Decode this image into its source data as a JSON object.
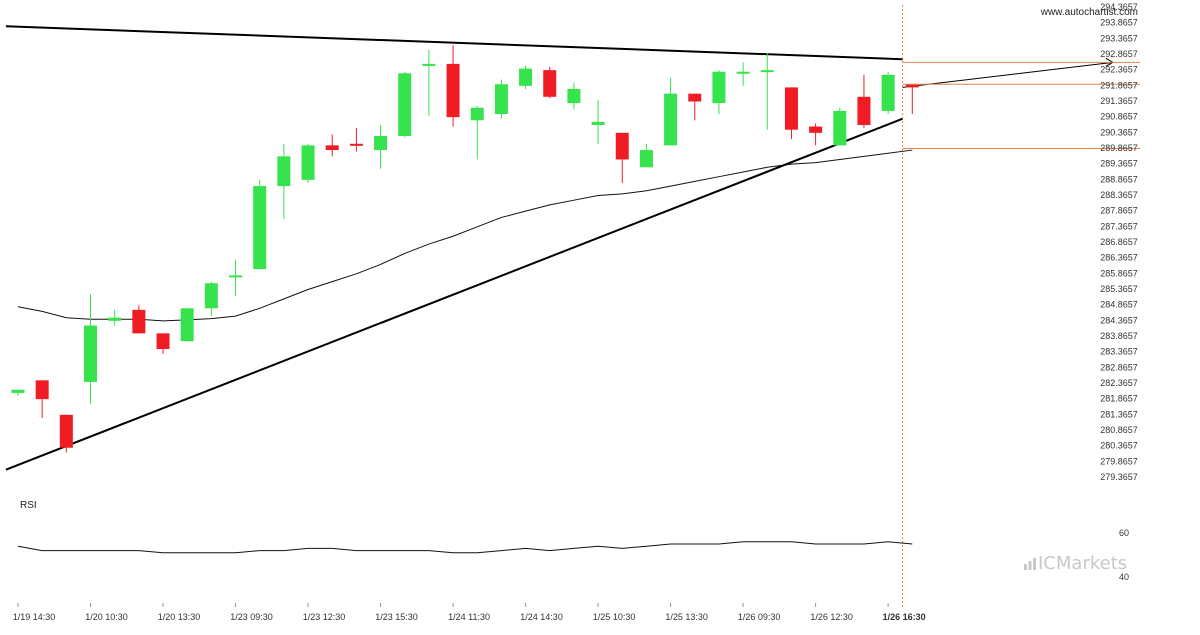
{
  "watermark": "www.autochartist.com",
  "brand": {
    "prefix": "IC",
    "suffix": "Markets"
  },
  "rsi_label": "RSI",
  "colors": {
    "up": "#37e34d",
    "down": "#f01c24",
    "line": "#000000",
    "orange": "#e0864a",
    "grid_text": "#333333"
  },
  "chart_data": {
    "type": "candlestick",
    "y_ticks": [
      "294.3657",
      "293.8657",
      "293.3657",
      "292.8657",
      "292.3657",
      "291.8657",
      "291.3657",
      "290.8657",
      "290.3657",
      "289.8657",
      "289.3657",
      "288.8657",
      "288.3657",
      "287.8657",
      "287.3657",
      "286.8657",
      "286.3657",
      "285.8657",
      "285.3657",
      "284.8657",
      "284.3657",
      "283.8657",
      "283.3657",
      "282.8657",
      "282.3657",
      "281.8657",
      "281.3657",
      "280.8657",
      "280.3657",
      "279.8657",
      "279.3657"
    ],
    "ylim": [
      279.3657,
      294.3657
    ],
    "x_tick_labels": [
      "1/19 14:30",
      "1/20 10:30",
      "1/20 13:30",
      "1/23 09:30",
      "1/23 12:30",
      "1/23 15:30",
      "1/24 11:30",
      "1/24 14:30",
      "1/25 10:30",
      "1/25 13:30",
      "1/26 09:30",
      "1/26 12:30",
      "1/26 16:30"
    ],
    "x_tick_index": [
      0,
      3,
      6,
      9,
      12,
      15,
      18,
      21,
      24,
      27,
      30,
      33,
      36
    ],
    "candles": [
      {
        "o": 282.05,
        "h": 282.15,
        "l": 281.95,
        "c": 282.15
      },
      {
        "o": 282.45,
        "h": 282.45,
        "l": 281.25,
        "c": 281.85
      },
      {
        "o": 281.35,
        "h": 281.35,
        "l": 280.15,
        "c": 280.3
      },
      {
        "o": 282.4,
        "h": 285.2,
        "l": 281.7,
        "c": 284.2
      },
      {
        "o": 284.35,
        "h": 284.7,
        "l": 284.2,
        "c": 284.45
      },
      {
        "o": 284.7,
        "h": 284.85,
        "l": 283.95,
        "c": 283.95
      },
      {
        "o": 283.95,
        "h": 283.95,
        "l": 283.3,
        "c": 283.45
      },
      {
        "o": 283.7,
        "h": 284.75,
        "l": 283.7,
        "c": 284.75
      },
      {
        "o": 284.75,
        "h": 285.6,
        "l": 284.5,
        "c": 285.55
      },
      {
        "o": 285.8,
        "h": 286.3,
        "l": 285.15,
        "c": 285.8
      },
      {
        "o": 286.0,
        "h": 288.85,
        "l": 286.0,
        "c": 288.65
      },
      {
        "o": 288.65,
        "h": 290.0,
        "l": 287.6,
        "c": 289.6
      },
      {
        "o": 288.85,
        "h": 290.0,
        "l": 288.75,
        "c": 289.95
      },
      {
        "o": 289.95,
        "h": 290.3,
        "l": 289.6,
        "c": 289.8
      },
      {
        "o": 290.0,
        "h": 290.5,
        "l": 289.75,
        "c": 289.95
      },
      {
        "o": 289.8,
        "h": 290.6,
        "l": 289.2,
        "c": 290.25
      },
      {
        "o": 290.25,
        "h": 292.3,
        "l": 290.2,
        "c": 292.25
      },
      {
        "o": 292.55,
        "h": 293.0,
        "l": 290.9,
        "c": 292.55
      },
      {
        "o": 292.55,
        "h": 293.15,
        "l": 290.55,
        "c": 290.85
      },
      {
        "o": 290.75,
        "h": 291.2,
        "l": 289.5,
        "c": 291.15
      },
      {
        "o": 290.95,
        "h": 292.05,
        "l": 290.8,
        "c": 291.9
      },
      {
        "o": 291.85,
        "h": 292.5,
        "l": 291.75,
        "c": 292.4
      },
      {
        "o": 292.35,
        "h": 292.45,
        "l": 291.45,
        "c": 291.5
      },
      {
        "o": 291.3,
        "h": 291.95,
        "l": 291.1,
        "c": 291.75
      },
      {
        "o": 290.6,
        "h": 291.4,
        "l": 290.0,
        "c": 290.7
      },
      {
        "o": 290.35,
        "h": 290.35,
        "l": 288.75,
        "c": 289.5
      },
      {
        "o": 289.25,
        "h": 290.0,
        "l": 289.25,
        "c": 289.8
      },
      {
        "o": 289.95,
        "h": 292.1,
        "l": 289.95,
        "c": 291.6
      },
      {
        "o": 291.6,
        "h": 291.6,
        "l": 290.75,
        "c": 291.35
      },
      {
        "o": 291.3,
        "h": 292.35,
        "l": 290.95,
        "c": 292.3
      },
      {
        "o": 292.25,
        "h": 292.6,
        "l": 291.85,
        "c": 292.3
      },
      {
        "o": 292.35,
        "h": 292.9,
        "l": 290.45,
        "c": 292.35
      },
      {
        "o": 291.8,
        "h": 291.8,
        "l": 290.15,
        "c": 290.45
      },
      {
        "o": 290.55,
        "h": 290.65,
        "l": 289.95,
        "c": 290.35
      },
      {
        "o": 289.95,
        "h": 291.15,
        "l": 289.95,
        "c": 291.05
      },
      {
        "o": 291.5,
        "h": 292.2,
        "l": 290.5,
        "c": 290.6
      },
      {
        "o": 291.05,
        "h": 292.3,
        "l": 290.95,
        "c": 292.2
      },
      {
        "o": 291.9,
        "h": 291.9,
        "l": 290.95,
        "c": 291.8
      }
    ],
    "moving_average": [
      284.8,
      284.65,
      284.45,
      284.4,
      284.4,
      284.4,
      284.35,
      284.38,
      284.42,
      284.5,
      284.75,
      285.05,
      285.35,
      285.6,
      285.85,
      286.15,
      286.5,
      286.8,
      287.05,
      287.35,
      287.65,
      287.85,
      288.05,
      288.2,
      288.35,
      288.4,
      288.5,
      288.65,
      288.8,
      288.95,
      289.1,
      289.25,
      289.35,
      289.4,
      289.5,
      289.6,
      289.7,
      289.8
    ],
    "trendlines": [
      {
        "name": "resistance",
        "x1": -0.5,
        "y1": 293.75,
        "x2": 36.6,
        "y2": 292.7
      },
      {
        "name": "support",
        "x1": -0.5,
        "y1": 279.6,
        "x2": 36.6,
        "y2": 290.8
      },
      {
        "name": "projection",
        "x1": 36.6,
        "y1": 291.8,
        "x2": 45.3,
        "y2": 292.6
      }
    ],
    "levels": [
      292.6,
      291.9,
      289.85
    ],
    "rsi": {
      "values": [
        54,
        52,
        52,
        52,
        52,
        52,
        51,
        51,
        51,
        51,
        52,
        52,
        53,
        53,
        52,
        52,
        52,
        52,
        51,
        51,
        52,
        53,
        52,
        53,
        54,
        53,
        54,
        55,
        55,
        55,
        56,
        56,
        56,
        55,
        55,
        55,
        56,
        55
      ],
      "ticks": [
        "60",
        "40"
      ],
      "ylim": [
        35,
        70
      ]
    }
  }
}
